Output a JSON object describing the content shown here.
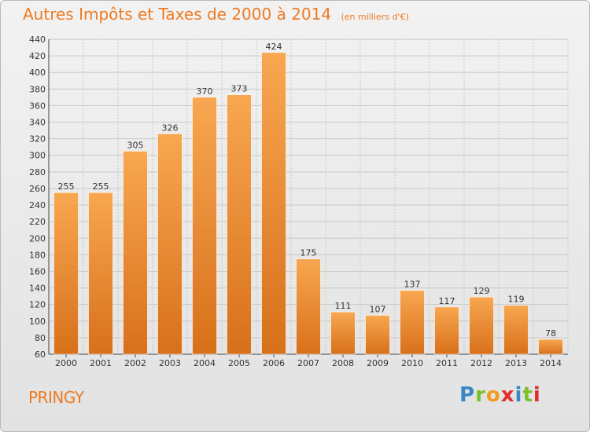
{
  "title": {
    "main": "Autres Impôts et Taxes de 2000 à 2014",
    "unit": "(en milliers d'€)"
  },
  "location": "PRINGY",
  "logo": {
    "text": "Proxiti",
    "letters": [
      {
        "ch": "P",
        "color": "#3a86c9"
      },
      {
        "ch": "r",
        "color": "#7cbf2a"
      },
      {
        "ch": "o",
        "color": "#f29b1d"
      },
      {
        "ch": "x",
        "color": "#e52c2c"
      },
      {
        "ch": "i",
        "color": "#3a86c9"
      },
      {
        "ch": "t",
        "color": "#7cbf2a"
      },
      {
        "ch": "i",
        "color": "#e52c2c"
      }
    ]
  },
  "colors": {
    "bar_top": "#f8a750",
    "bar_bottom": "#d8701b",
    "accent": "#ee7a21",
    "grid": "#c8c8c8"
  },
  "chart_data": {
    "type": "bar",
    "title": "Autres Impôts et Taxes de 2000 à 2014",
    "ylabel": "(en milliers d'€)",
    "categories": [
      "2000",
      "2001",
      "2002",
      "2003",
      "2004",
      "2005",
      "2006",
      "2007",
      "2008",
      "2009",
      "2010",
      "2011",
      "2012",
      "2013",
      "2014"
    ],
    "values": [
      255,
      255,
      305,
      326,
      370,
      373,
      424,
      175,
      111,
      107,
      137,
      117,
      129,
      119,
      78
    ],
    "ylim": [
      60,
      440
    ],
    "yticks": [
      60,
      80,
      100,
      120,
      140,
      160,
      180,
      200,
      220,
      240,
      260,
      280,
      300,
      320,
      340,
      360,
      380,
      400,
      420,
      440
    ],
    "grid": true
  }
}
